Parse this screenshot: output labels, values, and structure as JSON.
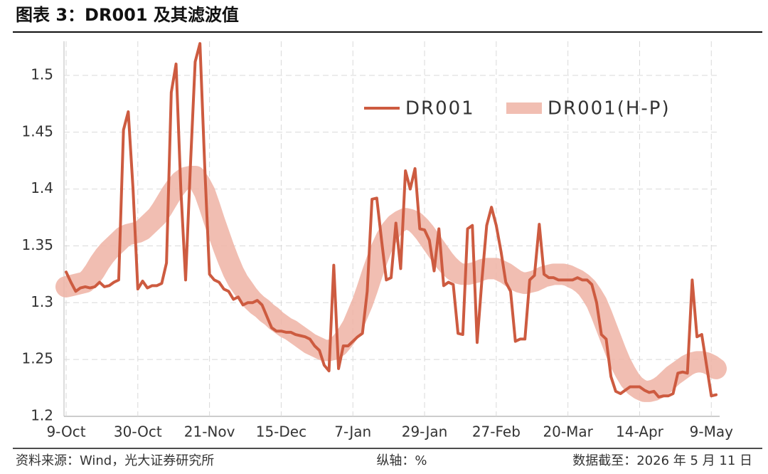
{
  "chart_data": {
    "type": "line",
    "title": "图表 3：DR001 及其滤波值",
    "source": "资料来源：Wind，光大证券研究所",
    "note": "纵轴：%",
    "date_note": "数据截至：2026 年 5 月 11 日",
    "categories": [
      "9-Oct",
      null,
      null,
      null,
      null,
      null,
      null,
      null,
      null,
      null,
      null,
      null,
      null,
      null,
      null,
      "30-Oct",
      null,
      null,
      null,
      null,
      null,
      null,
      null,
      null,
      null,
      null,
      null,
      null,
      null,
      null,
      "21-Nov",
      null,
      null,
      null,
      null,
      null,
      null,
      null,
      null,
      null,
      null,
      null,
      null,
      null,
      null,
      "15-Dec",
      null,
      null,
      null,
      null,
      null,
      null,
      null,
      null,
      null,
      null,
      null,
      null,
      null,
      null,
      "7-Jan",
      null,
      null,
      null,
      null,
      null,
      null,
      null,
      null,
      null,
      null,
      null,
      null,
      null,
      null,
      "29-Jan",
      null,
      null,
      null,
      null,
      null,
      null,
      null,
      null,
      null,
      null,
      null,
      null,
      null,
      null,
      "27-Feb",
      null,
      null,
      null,
      null,
      null,
      null,
      null,
      null,
      null,
      null,
      null,
      null,
      null,
      null,
      "20-Mar",
      null,
      null,
      null,
      null,
      null,
      null,
      null,
      null,
      null,
      null,
      null,
      null,
      null,
      null,
      "14-Apr",
      null,
      null,
      null,
      null,
      null,
      null,
      null,
      null,
      null,
      null,
      null,
      null,
      null,
      null,
      "9-May",
      null
    ],
    "series": [
      {
        "name": "DR001",
        "color": "#cd5b40",
        "values": [
          1.327,
          1.318,
          1.31,
          1.313,
          1.314,
          1.313,
          1.314,
          1.318,
          1.314,
          1.315,
          1.318,
          1.32,
          1.452,
          1.468,
          1.4,
          1.312,
          1.319,
          1.313,
          1.315,
          1.315,
          1.317,
          1.335,
          1.485,
          1.51,
          1.4,
          1.32,
          1.42,
          1.512,
          1.528,
          1.42,
          1.325,
          1.32,
          1.318,
          1.312,
          1.31,
          1.303,
          1.305,
          1.298,
          1.3,
          1.3,
          1.302,
          1.298,
          1.288,
          1.278,
          1.275,
          1.275,
          1.274,
          1.274,
          1.272,
          1.271,
          1.27,
          1.268,
          1.262,
          1.258,
          1.245,
          1.24,
          1.333,
          1.242,
          1.262,
          1.262,
          1.266,
          1.27,
          1.273,
          1.31,
          1.391,
          1.392,
          1.355,
          1.32,
          1.322,
          1.37,
          1.33,
          1.416,
          1.4,
          1.418,
          1.365,
          1.364,
          1.355,
          1.328,
          1.365,
          1.315,
          1.318,
          1.316,
          1.273,
          1.272,
          1.365,
          1.368,
          1.265,
          1.32,
          1.368,
          1.384,
          1.368,
          1.345,
          1.318,
          1.31,
          1.266,
          1.268,
          1.268,
          1.32,
          1.324,
          1.369,
          1.325,
          1.322,
          1.322,
          1.32,
          1.32,
          1.32,
          1.32,
          1.322,
          1.32,
          1.32,
          1.316,
          1.3,
          1.272,
          1.268,
          1.235,
          1.222,
          1.22,
          1.223,
          1.226,
          1.226,
          1.226,
          1.223,
          1.221,
          1.222,
          1.217,
          1.218,
          1.218,
          1.22,
          1.238,
          1.239,
          1.238,
          1.32,
          1.27,
          1.272,
          1.245,
          1.218,
          1.219
        ]
      },
      {
        "name": "DR001(H-P)",
        "color": "#efb3a5",
        "values": [
          1.314,
          1.315,
          1.316,
          1.317,
          1.318,
          1.322,
          1.328,
          1.335,
          1.341,
          1.346,
          1.35,
          1.354,
          1.358,
          1.36,
          1.361,
          1.362,
          1.364,
          1.368,
          1.372,
          1.376,
          1.382,
          1.389,
          1.396,
          1.402,
          1.407,
          1.41,
          1.411,
          1.411,
          1.405,
          1.397,
          1.385,
          1.372,
          1.36,
          1.348,
          1.337,
          1.327,
          1.319,
          1.313,
          1.307,
          1.302,
          1.298,
          1.295,
          1.291,
          1.288,
          1.284,
          1.281,
          1.278,
          1.276,
          1.273,
          1.27,
          1.267,
          1.264,
          1.262,
          1.26,
          1.258,
          1.258,
          1.259,
          1.262,
          1.267,
          1.273,
          1.28,
          1.29,
          1.3,
          1.312,
          1.325,
          1.337,
          1.348,
          1.357,
          1.364,
          1.369,
          1.372,
          1.374,
          1.373,
          1.371,
          1.367,
          1.362,
          1.356,
          1.35,
          1.344,
          1.338,
          1.333,
          1.329,
          1.326,
          1.325,
          1.325,
          1.326,
          1.327,
          1.329,
          1.33,
          1.33,
          1.33,
          1.328,
          1.326,
          1.323,
          1.32,
          1.318,
          1.317,
          1.318,
          1.319,
          1.321,
          1.323,
          1.324,
          1.325,
          1.325,
          1.325,
          1.324,
          1.322,
          1.32,
          1.317,
          1.313,
          1.307,
          1.3,
          1.29,
          1.279,
          1.268,
          1.257,
          1.247,
          1.239,
          1.232,
          1.227,
          1.224,
          1.222,
          1.222,
          1.223,
          1.225,
          1.228,
          1.232,
          1.236,
          1.239,
          1.242,
          1.245,
          1.247,
          1.248,
          1.248,
          1.247,
          1.245,
          1.242
        ]
      }
    ],
    "ylim": [
      1.2,
      1.53
    ],
    "yticks": [
      1.2,
      1.25,
      1.3,
      1.35,
      1.4,
      1.45,
      1.5
    ],
    "grid": true,
    "legend": "top-right"
  }
}
